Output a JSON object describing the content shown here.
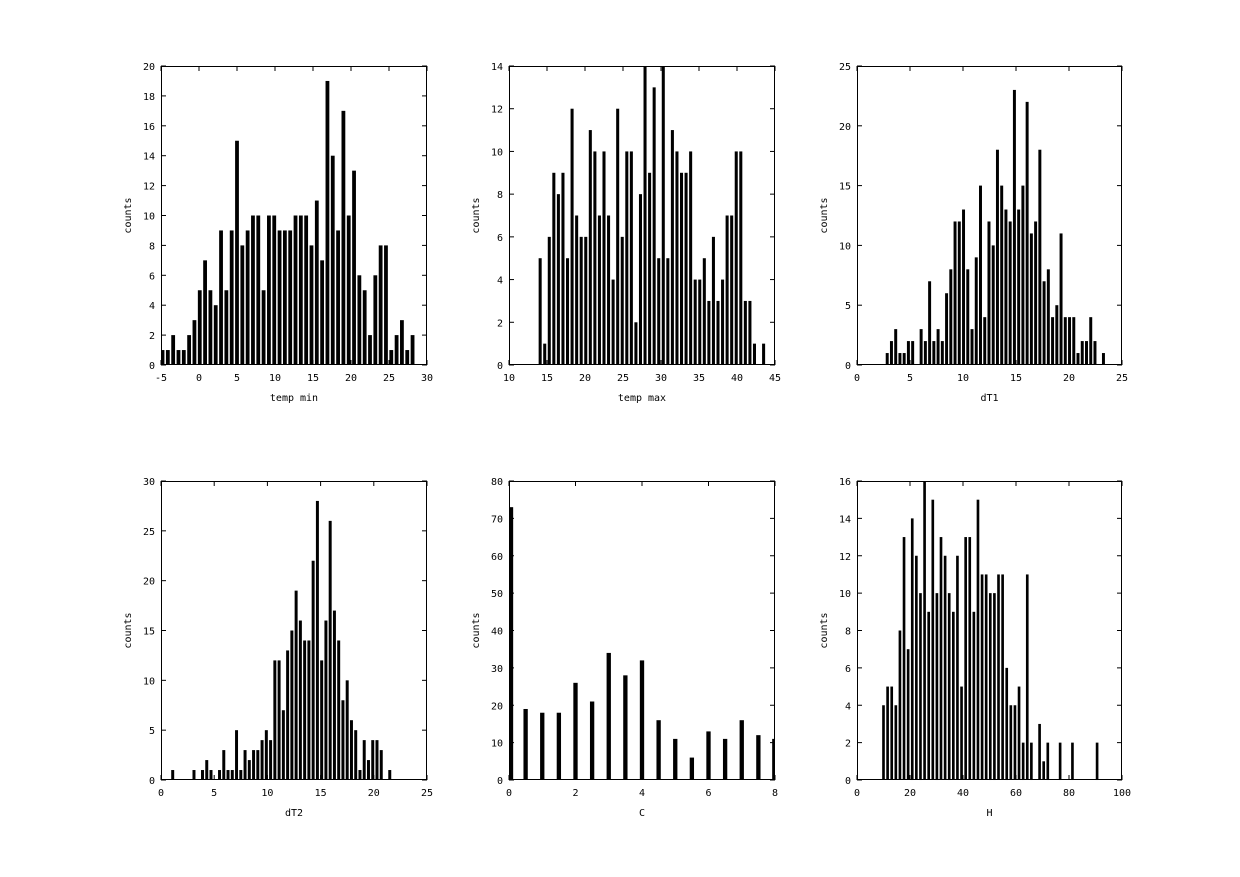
{
  "style": {
    "bar_color": "#000000",
    "frame_color": "#000000",
    "background": "#ffffff"
  },
  "chart_data": [
    {
      "type": "bar",
      "xlabel": "temp min",
      "ylabel": "counts",
      "xlim": [
        -5,
        30
      ],
      "ylim": [
        0,
        20
      ],
      "xticks": [
        "-5",
        "0",
        "5",
        "10",
        "15",
        "20",
        "25",
        "30"
      ],
      "yticks": [
        "0",
        "2",
        "4",
        "6",
        "8",
        "10",
        "12",
        "14",
        "16",
        "18",
        "20"
      ],
      "bin_width": 0.7,
      "bar_width": 0.5,
      "bins_start": -4.8,
      "values": [
        1,
        1,
        2,
        1,
        1,
        2,
        3,
        5,
        7,
        5,
        4,
        9,
        5,
        9,
        15,
        8,
        9,
        10,
        10,
        5,
        10,
        10,
        9,
        9,
        9,
        10,
        10,
        10,
        8,
        11,
        7,
        19,
        14,
        9,
        17,
        10,
        13,
        6,
        5,
        2,
        6,
        8,
        8,
        1,
        2,
        3,
        1,
        2
      ]
    },
    {
      "type": "bar",
      "xlabel": "temp max",
      "ylabel": "counts",
      "xlim": [
        10,
        45
      ],
      "ylim": [
        0,
        14
      ],
      "xticks": [
        "10",
        "15",
        "20",
        "25",
        "30",
        "35",
        "40",
        "45"
      ],
      "yticks": [
        "0",
        "2",
        "4",
        "6",
        "8",
        "10",
        "12",
        "14"
      ],
      "bin_width": 0.6,
      "bar_width": 0.4,
      "bins_start": 14.1,
      "values": [
        5,
        1,
        6,
        9,
        8,
        9,
        5,
        12,
        7,
        6,
        6,
        11,
        10,
        7,
        10,
        7,
        4,
        12,
        6,
        10,
        10,
        2,
        8,
        14,
        9,
        13,
        5,
        14,
        5,
        11,
        10,
        9,
        9,
        10,
        4,
        4,
        5,
        3,
        6,
        3,
        4,
        7,
        7,
        10,
        10,
        3,
        3,
        1,
        0,
        1
      ]
    },
    {
      "type": "bar",
      "xlabel": "dT1",
      "ylabel": "counts",
      "xlim": [
        0,
        25
      ],
      "ylim": [
        0,
        25
      ],
      "xticks": [
        "0",
        "5",
        "10",
        "15",
        "20",
        "25"
      ],
      "yticks": [
        "0",
        "5",
        "10",
        "15",
        "20",
        "25"
      ],
      "bin_width": 0.4,
      "bar_width": 0.28,
      "bins_start": 2.85,
      "values": [
        1,
        2,
        3,
        1,
        1,
        2,
        2,
        0,
        3,
        2,
        7,
        2,
        3,
        2,
        6,
        8,
        12,
        12,
        13,
        8,
        3,
        9,
        15,
        4,
        12,
        10,
        18,
        15,
        13,
        12,
        23,
        13,
        15,
        22,
        11,
        12,
        18,
        7,
        8,
        4,
        5,
        11,
        4,
        4,
        4,
        1,
        2,
        2,
        4,
        2,
        0,
        1
      ]
    },
    {
      "type": "bar",
      "xlabel": "dT2",
      "ylabel": "counts",
      "xlim": [
        0,
        25
      ],
      "ylim": [
        0,
        30
      ],
      "xticks": [
        "0",
        "5",
        "10",
        "15",
        "20",
        "25"
      ],
      "yticks": [
        "0",
        "5",
        "10",
        "15",
        "20",
        "25",
        "30"
      ],
      "bin_width": 0.4,
      "bar_width": 0.28,
      "bins_start": 1.1,
      "values": [
        1,
        0,
        0,
        0,
        0,
        1,
        0,
        1,
        2,
        1,
        0,
        1,
        3,
        1,
        1,
        5,
        1,
        3,
        2,
        3,
        3,
        4,
        5,
        4,
        12,
        12,
        7,
        13,
        15,
        19,
        16,
        14,
        14,
        22,
        28,
        12,
        16,
        26,
        17,
        14,
        8,
        10,
        6,
        5,
        1,
        4,
        2,
        4,
        4,
        3,
        0,
        1
      ]
    },
    {
      "type": "bar",
      "xlabel": "C",
      "ylabel": "counts",
      "xlim": [
        0,
        8
      ],
      "ylim": [
        0,
        80
      ],
      "xticks": [
        "0",
        "2",
        "4",
        "6",
        "8"
      ],
      "yticks": [
        "0",
        "10",
        "20",
        "30",
        "40",
        "50",
        "60",
        "70",
        "80"
      ],
      "bar_width": 0.13,
      "categories": [
        0.06,
        0.5,
        1.0,
        1.5,
        2.0,
        2.5,
        3.0,
        3.5,
        4.0,
        4.5,
        5.0,
        5.5,
        6.0,
        6.5,
        7.0,
        7.5,
        7.98
      ],
      "values": [
        73,
        19,
        18,
        18,
        26,
        21,
        34,
        28,
        32,
        16,
        11,
        6,
        13,
        11,
        16,
        12,
        11
      ]
    },
    {
      "type": "bar",
      "xlabel": "H",
      "ylabel": "counts",
      "xlim": [
        0,
        100
      ],
      "ylim": [
        0,
        16
      ],
      "xticks": [
        "0",
        "20",
        "40",
        "60",
        "80",
        "100"
      ],
      "yticks": [
        "0",
        "2",
        "4",
        "6",
        "8",
        "10",
        "12",
        "14",
        "16"
      ],
      "bin_width": 1.55,
      "bar_width": 1.0,
      "bins_start": 10.0,
      "values": [
        4,
        5,
        5,
        4,
        8,
        13,
        7,
        14,
        12,
        10,
        16,
        9,
        15,
        10,
        13,
        12,
        10,
        9,
        12,
        5,
        13,
        13,
        9,
        15,
        11,
        11,
        10,
        10,
        11,
        11,
        6,
        4,
        4,
        5,
        2,
        11,
        2,
        0,
        3,
        1,
        2,
        0,
        0,
        2,
        0,
        0,
        2,
        0,
        0,
        0,
        0,
        0,
        2
      ]
    }
  ]
}
